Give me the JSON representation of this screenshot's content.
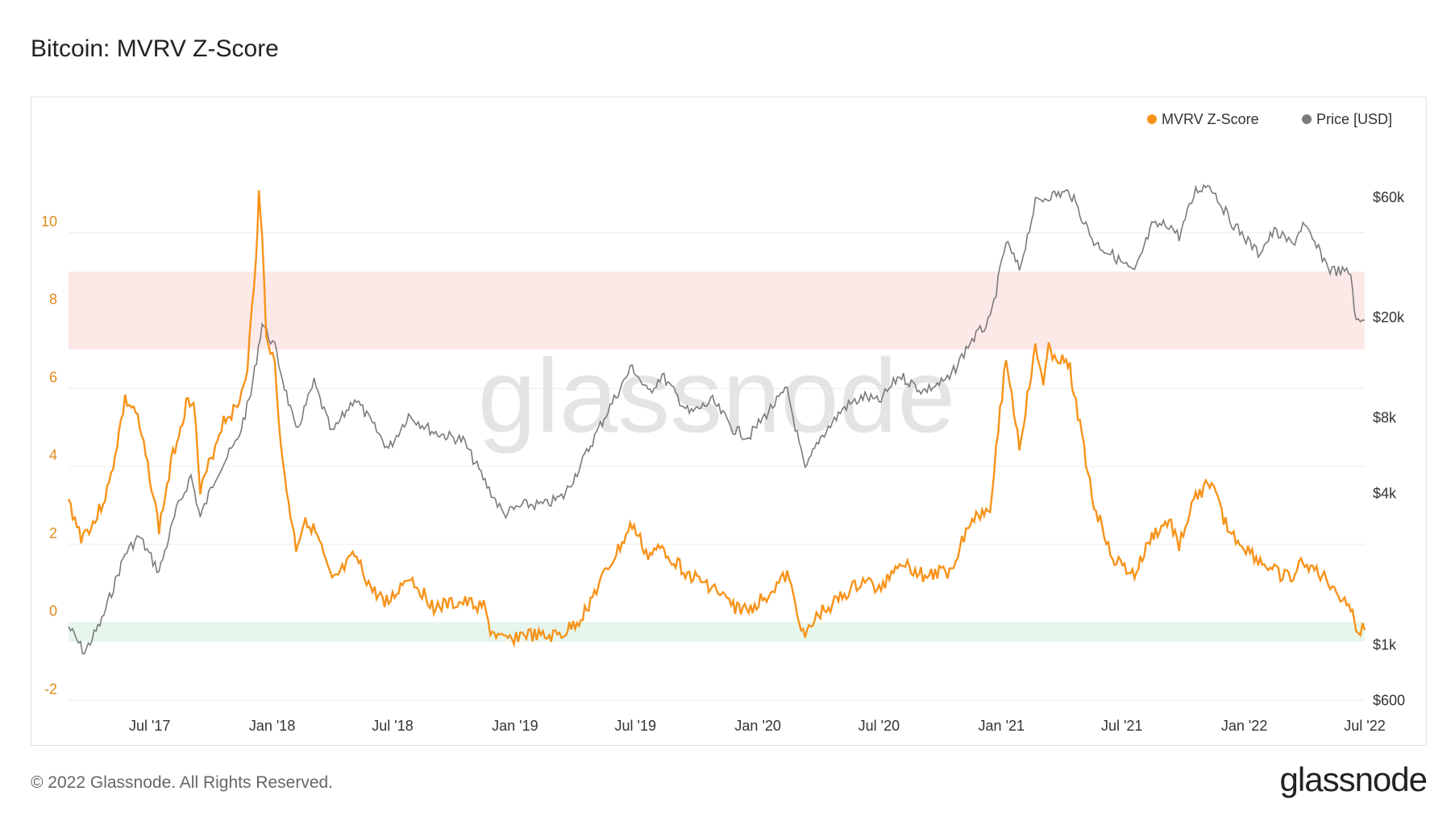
{
  "title": "Bitcoin: MVRV Z-Score",
  "footer": "© 2022 Glassnode. All Rights Reserved.",
  "brand": "glassnode",
  "watermark": "glassnode",
  "colors": {
    "zscore": "#f7931a",
    "price": "#7a7a7a",
    "red_band": "#fde8e8",
    "green_band": "#e6f6ec",
    "grid": "#ececec",
    "left_axis_text": "#e0891b"
  },
  "chart_data": {
    "type": "line",
    "title": "Bitcoin: MVRV Z-Score",
    "grid": true,
    "legend_position": "top-right",
    "legend": [
      {
        "name": "MVRV Z-Score",
        "color": "#f7931a"
      },
      {
        "name": "Price [USD]",
        "color": "#7a7a7a"
      }
    ],
    "x_ticks": [
      "Jul '17",
      "Jan '18",
      "Jul '18",
      "Jan '19",
      "Jul '19",
      "Jan '20",
      "Jul '20",
      "Jan '21",
      "Jul '21",
      "Jan '22",
      "Jul '22"
    ],
    "x_tick_dates": [
      "2017-07-01",
      "2018-01-01",
      "2018-07-01",
      "2019-01-01",
      "2019-07-01",
      "2020-01-01",
      "2020-07-01",
      "2021-01-01",
      "2021-07-01",
      "2022-01-01",
      "2022-07-01"
    ],
    "x_range": [
      "2017-03-01",
      "2022-07-01"
    ],
    "left_axis": {
      "ticks": [
        -2,
        0,
        2,
        4,
        6,
        8,
        10
      ],
      "range": [
        -2.2,
        12.6
      ]
    },
    "right_axis": {
      "scale": "log",
      "ticks": [
        600,
        1000,
        4000,
        8000,
        20000,
        60000
      ],
      "tick_labels": [
        "$600",
        "$1k",
        "$4k",
        "$8k",
        "$20k",
        "$60k"
      ],
      "range": [
        560,
        110000
      ]
    },
    "bands": [
      {
        "from": 7,
        "to": 9,
        "color": "#fde8e8"
      },
      {
        "from": -0.5,
        "to": 0,
        "color": "#e6f6ec"
      }
    ],
    "series": [
      {
        "name": "MVRV Z-Score",
        "axis": "left",
        "points": [
          [
            "2017-03-01",
            3.1
          ],
          [
            "2017-03-20",
            2.2
          ],
          [
            "2017-04-10",
            2.6
          ],
          [
            "2017-05-01",
            3.5
          ],
          [
            "2017-05-25",
            5.7
          ],
          [
            "2017-06-10",
            5.4
          ],
          [
            "2017-07-01",
            3.8
          ],
          [
            "2017-07-15",
            2.4
          ],
          [
            "2017-08-05",
            4.3
          ],
          [
            "2017-08-25",
            5.6
          ],
          [
            "2017-09-05",
            5.8
          ],
          [
            "2017-09-15",
            3.3
          ],
          [
            "2017-10-01",
            4.2
          ],
          [
            "2017-10-20",
            5.2
          ],
          [
            "2017-11-10",
            5.5
          ],
          [
            "2017-11-25",
            6.6
          ],
          [
            "2017-12-08",
            9.3
          ],
          [
            "2017-12-12",
            11.0
          ],
          [
            "2017-12-17",
            9.8
          ],
          [
            "2017-12-23",
            7.5
          ],
          [
            "2018-01-05",
            6.6
          ],
          [
            "2018-01-17",
            4.0
          ],
          [
            "2018-02-06",
            1.9
          ],
          [
            "2018-02-20",
            2.7
          ],
          [
            "2018-03-10",
            2.2
          ],
          [
            "2018-04-01",
            1.0
          ],
          [
            "2018-05-05",
            1.7
          ],
          [
            "2018-06-01",
            0.8
          ],
          [
            "2018-06-25",
            0.5
          ],
          [
            "2018-07-25",
            1.2
          ],
          [
            "2018-09-01",
            0.4
          ],
          [
            "2018-10-15",
            0.5
          ],
          [
            "2018-11-15",
            0.4
          ],
          [
            "2018-11-25",
            -0.2
          ],
          [
            "2018-12-15",
            -0.5
          ],
          [
            "2019-01-15",
            -0.3
          ],
          [
            "2019-02-15",
            -0.4
          ],
          [
            "2019-03-15",
            -0.3
          ],
          [
            "2019-04-10",
            0.1
          ],
          [
            "2019-05-15",
            1.2
          ],
          [
            "2019-06-26",
            2.5
          ],
          [
            "2019-07-20",
            1.7
          ],
          [
            "2019-08-10",
            1.9
          ],
          [
            "2019-09-20",
            1.2
          ],
          [
            "2019-10-25",
            0.9
          ],
          [
            "2019-11-25",
            0.4
          ],
          [
            "2019-12-18",
            0.3
          ],
          [
            "2020-01-20",
            0.8
          ],
          [
            "2020-02-14",
            1.2
          ],
          [
            "2020-03-12",
            -0.4
          ],
          [
            "2020-04-01",
            0.2
          ],
          [
            "2020-05-10",
            0.7
          ],
          [
            "2020-06-10",
            1.1
          ],
          [
            "2020-07-01",
            0.8
          ],
          [
            "2020-08-01",
            1.6
          ],
          [
            "2020-09-05",
            1.2
          ],
          [
            "2020-10-15",
            1.3
          ],
          [
            "2020-11-15",
            2.6
          ],
          [
            "2020-12-15",
            3.0
          ],
          [
            "2021-01-08",
            6.8
          ],
          [
            "2021-01-28",
            4.5
          ],
          [
            "2021-02-21",
            7.0
          ],
          [
            "2021-03-05",
            6.2
          ],
          [
            "2021-03-13",
            7.0
          ],
          [
            "2021-04-14",
            6.5
          ],
          [
            "2021-05-20",
            3.0
          ],
          [
            "2021-06-20",
            1.6
          ],
          [
            "2021-07-20",
            1.2
          ],
          [
            "2021-08-15",
            2.2
          ],
          [
            "2021-09-10",
            2.6
          ],
          [
            "2021-09-25",
            2.0
          ],
          [
            "2021-10-20",
            3.2
          ],
          [
            "2021-11-10",
            3.6
          ],
          [
            "2021-12-10",
            2.3
          ],
          [
            "2022-01-22",
            1.6
          ],
          [
            "2022-02-15",
            1.3
          ],
          [
            "2022-03-15",
            1.1
          ],
          [
            "2022-03-30",
            1.6
          ],
          [
            "2022-05-10",
            1.0
          ],
          [
            "2022-06-10",
            0.4
          ],
          [
            "2022-06-18",
            -0.2
          ],
          [
            "2022-07-01",
            -0.2
          ]
        ]
      },
      {
        "name": "Price [USD]",
        "axis": "right",
        "points": [
          [
            "2017-03-01",
            1180
          ],
          [
            "2017-03-25",
            930
          ],
          [
            "2017-04-20",
            1250
          ],
          [
            "2017-05-25",
            2300
          ],
          [
            "2017-06-15",
            2700
          ],
          [
            "2017-07-15",
            1950
          ],
          [
            "2017-08-10",
            3400
          ],
          [
            "2017-09-01",
            4700
          ],
          [
            "2017-09-15",
            3200
          ],
          [
            "2017-10-10",
            4800
          ],
          [
            "2017-11-10",
            6500
          ],
          [
            "2017-11-30",
            9900
          ],
          [
            "2017-12-17",
            19000
          ],
          [
            "2018-01-05",
            15200
          ],
          [
            "2018-02-06",
            7000
          ],
          [
            "2018-03-05",
            11000
          ],
          [
            "2018-04-01",
            6900
          ],
          [
            "2018-05-05",
            9600
          ],
          [
            "2018-06-25",
            6000
          ],
          [
            "2018-07-25",
            8200
          ],
          [
            "2018-09-01",
            7000
          ],
          [
            "2018-10-15",
            6500
          ],
          [
            "2018-11-20",
            4300
          ],
          [
            "2018-12-15",
            3300
          ],
          [
            "2019-01-15",
            3600
          ],
          [
            "2019-02-15",
            3600
          ],
          [
            "2019-03-15",
            3900
          ],
          [
            "2019-04-10",
            5200
          ],
          [
            "2019-05-15",
            8000
          ],
          [
            "2019-06-26",
            12800
          ],
          [
            "2019-07-20",
            10000
          ],
          [
            "2019-08-10",
            11800
          ],
          [
            "2019-09-20",
            8300
          ],
          [
            "2019-10-25",
            9300
          ],
          [
            "2019-11-25",
            7200
          ],
          [
            "2019-12-18",
            6700
          ],
          [
            "2020-01-20",
            8700
          ],
          [
            "2020-02-14",
            10300
          ],
          [
            "2020-03-12",
            4900
          ],
          [
            "2020-04-01",
            6500
          ],
          [
            "2020-05-10",
            8800
          ],
          [
            "2020-06-10",
            9700
          ],
          [
            "2020-07-01",
            9200
          ],
          [
            "2020-08-01",
            11800
          ],
          [
            "2020-09-05",
            10200
          ],
          [
            "2020-10-15",
            11400
          ],
          [
            "2020-11-15",
            16000
          ],
          [
            "2020-12-15",
            19400
          ],
          [
            "2021-01-08",
            40000
          ],
          [
            "2021-01-28",
            31000
          ],
          [
            "2021-02-21",
            57000
          ],
          [
            "2021-03-13",
            61000
          ],
          [
            "2021-04-14",
            63000
          ],
          [
            "2021-05-20",
            40000
          ],
          [
            "2021-06-20",
            35000
          ],
          [
            "2021-07-20",
            30000
          ],
          [
            "2021-08-15",
            46000
          ],
          [
            "2021-09-10",
            47000
          ],
          [
            "2021-09-25",
            42000
          ],
          [
            "2021-10-20",
            64000
          ],
          [
            "2021-11-10",
            68000
          ],
          [
            "2021-12-10",
            49000
          ],
          [
            "2022-01-22",
            36000
          ],
          [
            "2022-02-15",
            44000
          ],
          [
            "2022-03-15",
            39000
          ],
          [
            "2022-03-30",
            47000
          ],
          [
            "2022-05-10",
            31000
          ],
          [
            "2022-06-10",
            30000
          ],
          [
            "2022-06-18",
            19000
          ],
          [
            "2022-07-01",
            19500
          ]
        ]
      }
    ]
  }
}
